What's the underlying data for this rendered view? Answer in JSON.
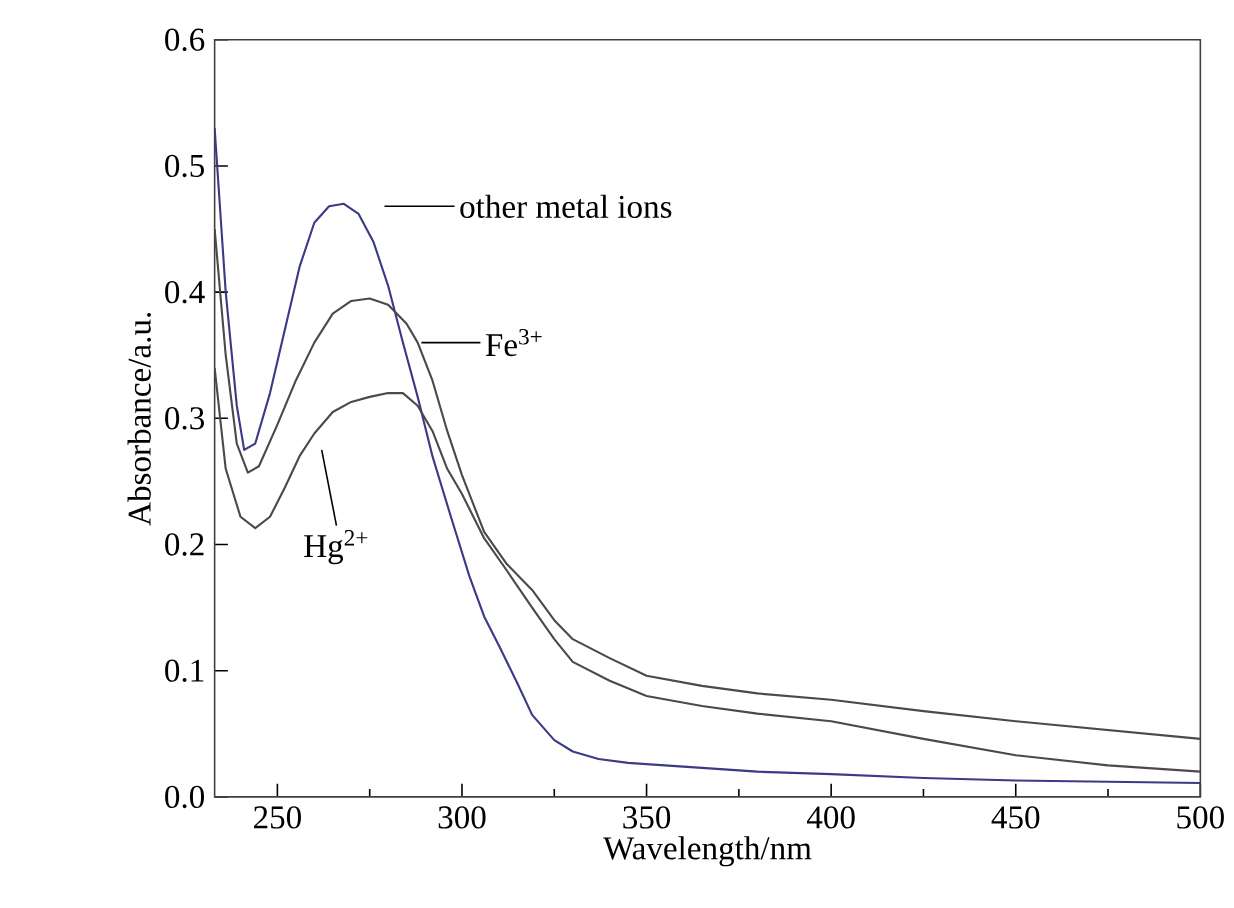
{
  "chart_data": {
    "type": "line",
    "xlabel": "Wavelength/nm",
    "ylabel": "Absorbance/a.u.",
    "xlim": [
      233,
      500
    ],
    "xticks": [
      250,
      300,
      350,
      400,
      450,
      500
    ],
    "ylim": [
      0,
      0.6
    ],
    "yticks": [
      {
        "value": 0,
        "label": "0.0"
      },
      {
        "value": 0.1,
        "label": "0.1"
      },
      {
        "value": 0.2,
        "label": "0.2"
      },
      {
        "value": 0.3,
        "label": "0.3"
      },
      {
        "value": 0.4,
        "label": "0.4"
      },
      {
        "value": 0.5,
        "label": "0.5"
      },
      {
        "value": 0.6,
        "label": "0.6"
      }
    ],
    "grid": false,
    "legend": false,
    "marker": "none",
    "line_style": "solid",
    "series": [
      {
        "name": "other metal ions",
        "color": "#3a3a86",
        "x": [
          233,
          236,
          239,
          241,
          244,
          248,
          252,
          256,
          260,
          264,
          268,
          272,
          276,
          280,
          284,
          288,
          292,
          297,
          302,
          306,
          310,
          315,
          319,
          325,
          330,
          337,
          345,
          360,
          380,
          400,
          425,
          450,
          475,
          500
        ],
        "values": [
          0.53,
          0.4,
          0.31,
          0.275,
          0.28,
          0.32,
          0.37,
          0.42,
          0.455,
          0.468,
          0.47,
          0.462,
          0.44,
          0.405,
          0.36,
          0.317,
          0.27,
          0.222,
          0.175,
          0.143,
          0.12,
          0.09,
          0.065,
          0.045,
          0.036,
          0.03,
          0.027,
          0.024,
          0.02,
          0.018,
          0.015,
          0.013,
          0.012,
          0.011
        ]
      },
      {
        "name": "Fe$^{3+}$",
        "color": "#4a4a4a",
        "x": [
          233,
          236,
          239,
          242,
          245,
          250,
          255,
          260,
          265,
          270,
          275,
          280,
          285,
          288,
          292,
          296,
          300,
          306,
          312,
          319,
          325,
          330,
          340,
          350,
          365,
          380,
          400,
          425,
          450,
          475,
          500
        ],
        "values": [
          0.45,
          0.35,
          0.28,
          0.257,
          0.262,
          0.295,
          0.33,
          0.36,
          0.383,
          0.393,
          0.395,
          0.39,
          0.375,
          0.36,
          0.33,
          0.29,
          0.255,
          0.21,
          0.185,
          0.164,
          0.14,
          0.125,
          0.11,
          0.096,
          0.088,
          0.082,
          0.077,
          0.068,
          0.06,
          0.053,
          0.046
        ]
      },
      {
        "name": "Hg$^{2+}$",
        "color": "#4a4a4a",
        "x": [
          233,
          236,
          240,
          244,
          248,
          252,
          256,
          260,
          265,
          270,
          275,
          280,
          284,
          288,
          292,
          296,
          300,
          306,
          312,
          319,
          325,
          330,
          340,
          350,
          365,
          380,
          400,
          425,
          450,
          475,
          500
        ],
        "values": [
          0.34,
          0.26,
          0.222,
          0.213,
          0.222,
          0.245,
          0.27,
          0.288,
          0.305,
          0.313,
          0.317,
          0.32,
          0.32,
          0.31,
          0.29,
          0.26,
          0.24,
          0.205,
          0.18,
          0.15,
          0.125,
          0.107,
          0.092,
          0.08,
          0.072,
          0.066,
          0.06,
          0.046,
          0.033,
          0.025,
          0.02
        ]
      }
    ]
  }
}
